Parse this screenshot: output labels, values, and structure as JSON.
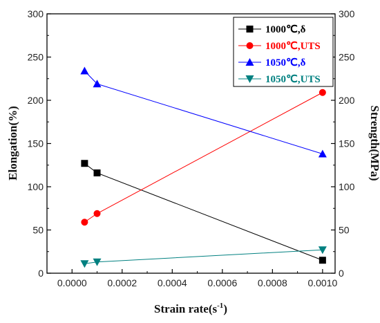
{
  "chart_data": {
    "type": "line",
    "xlabel": "Strain rate(s",
    "xlabel_sup": "-1",
    "xlabel_suffix": ")",
    "ylabel_left": "Elongation(%)",
    "ylabel_right": "Strength(MPa)",
    "xlim": [
      -0.0001,
      0.00105
    ],
    "ylim_left": [
      0,
      300
    ],
    "ylim_right": [
      0,
      300
    ],
    "x_ticks": [
      "0.0000",
      "0.0002",
      "0.0004",
      "0.0006",
      "0.0008",
      "0.0010"
    ],
    "y_ticks": [
      "0",
      "50",
      "100",
      "150",
      "200",
      "250",
      "300"
    ],
    "legend_position": "top-right",
    "grid": false,
    "series": [
      {
        "name": "1000℃,δ",
        "axis": "left",
        "color": "#000000",
        "marker": "square",
        "x": [
          5e-05,
          0.0001,
          0.001
        ],
        "y": [
          127,
          116,
          15
        ]
      },
      {
        "name": "1000℃,UTS",
        "axis": "right",
        "color": "#ff0000",
        "marker": "circle",
        "x": [
          5e-05,
          0.0001,
          0.001
        ],
        "y": [
          59,
          69,
          209
        ]
      },
      {
        "name": "1050℃,δ",
        "axis": "left",
        "color": "#0000ff",
        "marker": "triangle-up",
        "x": [
          5e-05,
          0.0001,
          0.001
        ],
        "y": [
          234,
          219,
          138
        ]
      },
      {
        "name": "1050℃,UTS",
        "axis": "right",
        "color": "#008080",
        "marker": "triangle-down",
        "x": [
          5e-05,
          0.0001,
          0.001
        ],
        "y": [
          11,
          13,
          27
        ]
      }
    ]
  }
}
